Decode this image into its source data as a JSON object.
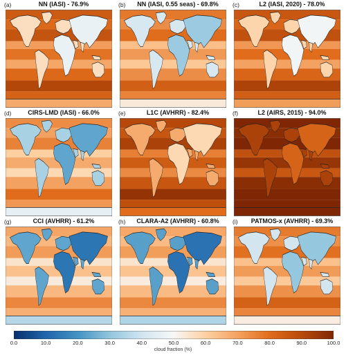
{
  "panels": [
    {
      "letter": "(a)",
      "title": "NN (IASI) - 76.9%",
      "level": 76.9
    },
    {
      "letter": "(b)",
      "title": "NN (IASI, 0.55 seas) - 69.8%",
      "level": 69.8
    },
    {
      "letter": "(c)",
      "title": "L2 (IASI, 2020) - 78.0%",
      "level": 78.0
    },
    {
      "letter": "(d)",
      "title": "CIRS-LMD (IASI) - 66.0%",
      "level": 66.0
    },
    {
      "letter": "(e)",
      "title": "L1C (AVHRR) - 82.4%",
      "level": 82.4
    },
    {
      "letter": "(f)",
      "title": "L2 (AIRS, 2015) - 94.0%",
      "level": 94.0
    },
    {
      "letter": "(g)",
      "title": "CCI (AVHRR) - 61.2%",
      "level": 61.2
    },
    {
      "letter": "(h)",
      "title": "CLARA-A2 (AVHRR) - 60.8%",
      "level": 60.8
    },
    {
      "letter": "(i)",
      "title": "PATMOS-x (AVHRR) - 69.3%",
      "level": 69.3
    }
  ],
  "colorbar": {
    "ticks": [
      "0.0",
      "10.0",
      "20.0",
      "30.0",
      "40.0",
      "50.0",
      "60.0",
      "70.0",
      "80.0",
      "90.0",
      "100.0"
    ],
    "label": "cloud fraction (%)",
    "colors": [
      "#08306b",
      "#2166ac",
      "#4393c3",
      "#92c5de",
      "#d1e5f0",
      "#f7f7f7",
      "#fdd0a2",
      "#f4a261",
      "#e06c1c",
      "#b84a0a",
      "#7f2704"
    ]
  }
}
